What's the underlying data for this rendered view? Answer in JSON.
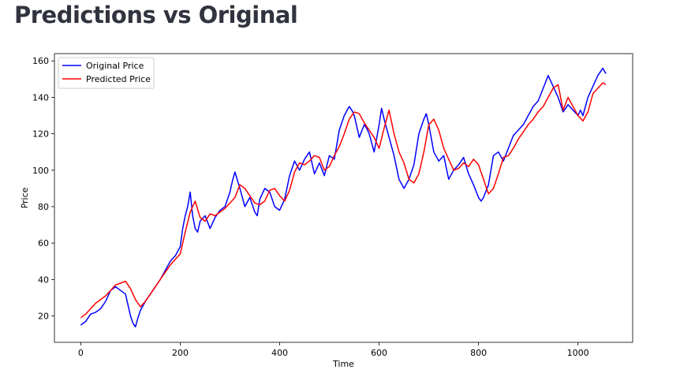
{
  "page": {
    "title": "Predictions vs Original"
  },
  "chart_data": {
    "type": "line",
    "xlabel": "Time",
    "ylabel": "Price",
    "xlim": [
      -53,
      1110
    ],
    "ylim": [
      5.5,
      164
    ],
    "x_ticks": [
      0,
      200,
      400,
      600,
      800,
      1000
    ],
    "y_ticks": [
      20,
      40,
      60,
      80,
      100,
      120,
      140,
      160
    ],
    "grid": false,
    "legend_position": "top-left",
    "series": [
      {
        "name": "Original Price",
        "color": "#0000ff",
        "x": [
          0,
          10,
          20,
          30,
          40,
          50,
          60,
          70,
          80,
          90,
          100,
          105,
          110,
          115,
          120,
          130,
          140,
          150,
          160,
          170,
          180,
          190,
          200,
          205,
          210,
          215,
          220,
          225,
          230,
          235,
          240,
          250,
          260,
          270,
          280,
          290,
          300,
          305,
          310,
          320,
          330,
          340,
          350,
          355,
          360,
          370,
          380,
          390,
          400,
          410,
          420,
          430,
          440,
          450,
          460,
          470,
          480,
          490,
          500,
          510,
          520,
          530,
          540,
          545,
          550,
          560,
          570,
          575,
          580,
          590,
          600,
          605,
          610,
          620,
          630,
          640,
          650,
          660,
          670,
          680,
          690,
          695,
          700,
          710,
          720,
          730,
          740,
          750,
          760,
          770,
          780,
          790,
          800,
          805,
          810,
          820,
          830,
          840,
          850,
          860,
          870,
          880,
          890,
          900,
          910,
          920,
          930,
          940,
          950,
          960,
          970,
          980,
          990,
          1000,
          1005,
          1010,
          1020,
          1030,
          1040,
          1050,
          1056
        ],
        "values": [
          15,
          17,
          21,
          22,
          24,
          28,
          34,
          36,
          34,
          32,
          20,
          16,
          14,
          19,
          23,
          28,
          32,
          36,
          40,
          45,
          50,
          53,
          58,
          68,
          75,
          80,
          88,
          75,
          68,
          66,
          72,
          75,
          68,
          74,
          78,
          80,
          88,
          94,
          99,
          90,
          80,
          85,
          77,
          75,
          84,
          90,
          88,
          80,
          78,
          84,
          97,
          105,
          100,
          106,
          110,
          98,
          104,
          97,
          108,
          106,
          122,
          130,
          135,
          133,
          130,
          118,
          125,
          123,
          120,
          110,
          125,
          134,
          128,
          118,
          108,
          95,
          90,
          95,
          103,
          120,
          128,
          131,
          125,
          110,
          105,
          108,
          95,
          100,
          103,
          107,
          98,
          92,
          85,
          83,
          85,
          92,
          108,
          110,
          105,
          112,
          119,
          122,
          125,
          130,
          135,
          138,
          145,
          152,
          146,
          140,
          132,
          136,
          133,
          130,
          133,
          130,
          140,
          146,
          152,
          156,
          153
        ]
      },
      {
        "name": "Predicted Price",
        "color": "#ff0000",
        "x": [
          0,
          10,
          20,
          30,
          40,
          50,
          60,
          70,
          80,
          90,
          100,
          110,
          120,
          130,
          140,
          150,
          160,
          170,
          180,
          190,
          200,
          210,
          220,
          230,
          240,
          250,
          260,
          270,
          280,
          290,
          300,
          310,
          320,
          330,
          340,
          350,
          360,
          370,
          380,
          390,
          400,
          410,
          420,
          430,
          440,
          450,
          460,
          470,
          480,
          490,
          500,
          510,
          520,
          530,
          540,
          550,
          560,
          570,
          580,
          590,
          600,
          610,
          620,
          630,
          640,
          650,
          660,
          670,
          680,
          690,
          700,
          710,
          720,
          730,
          740,
          750,
          760,
          770,
          780,
          790,
          800,
          810,
          820,
          830,
          840,
          850,
          860,
          870,
          880,
          890,
          900,
          910,
          920,
          930,
          940,
          950,
          960,
          970,
          980,
          990,
          1000,
          1010,
          1020,
          1030,
          1040,
          1050,
          1056
        ],
        "values": [
          19,
          21,
          24,
          27,
          29,
          31,
          34,
          37,
          38,
          39,
          35,
          29,
          25,
          28,
          32,
          36,
          40,
          44,
          48,
          51,
          54,
          66,
          77,
          83,
          74,
          72,
          76,
          75,
          77,
          79,
          82,
          85,
          92,
          90,
          86,
          82,
          81,
          83,
          89,
          90,
          86,
          83,
          89,
          99,
          104,
          103,
          105,
          108,
          107,
          100,
          102,
          108,
          113,
          120,
          128,
          132,
          131,
          126,
          122,
          118,
          112,
          123,
          133,
          120,
          110,
          104,
          95,
          93,
          98,
          110,
          125,
          128,
          122,
          112,
          106,
          100,
          101,
          104,
          102,
          106,
          103,
          95,
          87,
          90,
          98,
          107,
          108,
          112,
          117,
          121,
          125,
          128,
          132,
          135,
          140,
          145,
          147,
          133,
          140,
          135,
          130,
          127,
          132,
          142,
          145,
          148,
          147
        ]
      }
    ]
  }
}
